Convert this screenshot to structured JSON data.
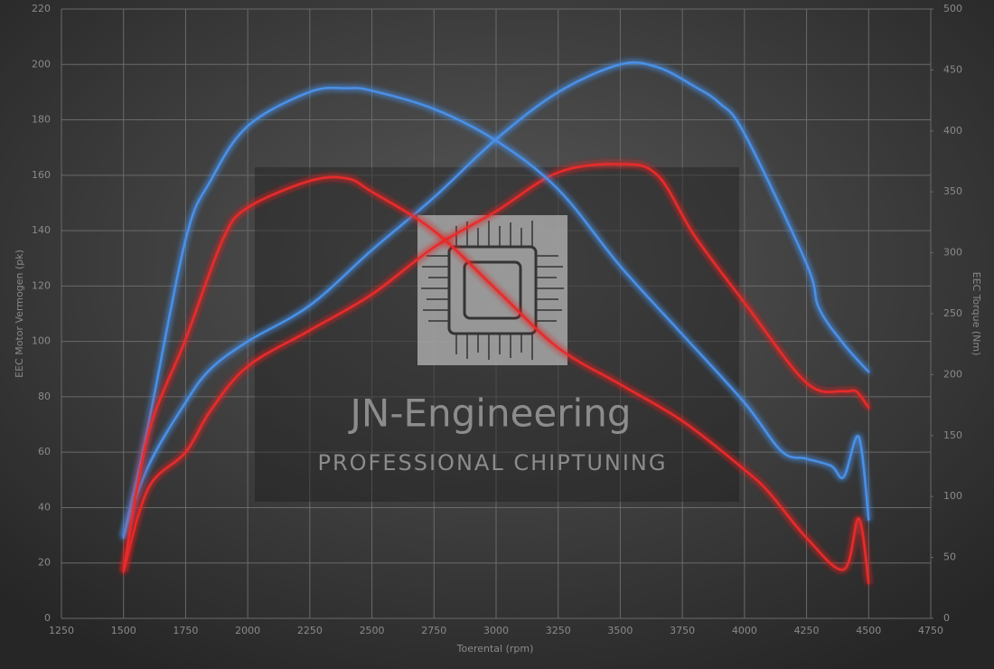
{
  "chart_data": {
    "type": "line",
    "xlabel": "Toerental (rpm)",
    "ylabel": "EEC Motor Vermogen (pk)",
    "y2label": "EEC Torque (Nm)",
    "annotations": [
      "JN-Engineering",
      "PROFESSIONAL CHIPTUNING"
    ],
    "xlim": [
      1250,
      4750
    ],
    "xticks": [
      1250,
      1500,
      1750,
      2000,
      2250,
      2500,
      2750,
      3000,
      3250,
      3500,
      3750,
      4000,
      4250,
      4500,
      4750
    ],
    "ylim": [
      0,
      220
    ],
    "yticks": [
      0,
      20,
      40,
      60,
      80,
      100,
      120,
      140,
      160,
      180,
      200,
      220
    ],
    "y2lim": [
      0,
      500
    ],
    "y2ticks": [
      0,
      50,
      100,
      150,
      200,
      250,
      300,
      350,
      400,
      450,
      500
    ],
    "grid": true,
    "series": [
      {
        "color": "#4a90e8",
        "axis": "y",
        "x": [
          1500,
          1600,
          1750,
          1850,
          2000,
          2250,
          2500,
          2750,
          3000,
          3250,
          3500,
          3650,
          3800,
          3900,
          4000,
          4250,
          4300,
          4400,
          4500
        ],
        "values": [
          30,
          55,
          78,
          90,
          100,
          113,
          133,
          152,
          173,
          190,
          200,
          199,
          192,
          186,
          175,
          128,
          112,
          99,
          89
        ]
      },
      {
        "color": "#e82a2a",
        "axis": "y",
        "x": [
          1500,
          1600,
          1750,
          1850,
          2000,
          2250,
          2500,
          2750,
          3000,
          3250,
          3500,
          3650,
          3800,
          4000,
          4250,
          4400,
          4450,
          4500
        ],
        "values": [
          17,
          47,
          60,
          75,
          91,
          104,
          117,
          134,
          147,
          161,
          164,
          160,
          138,
          114,
          85,
          82,
          82,
          76
        ]
      },
      {
        "color": "#4a90e8",
        "axis": "y2",
        "x": [
          1500,
          1600,
          1750,
          1850,
          2000,
          2250,
          2400,
          2500,
          2750,
          3000,
          3250,
          3500,
          3750,
          4000,
          4150,
          4250,
          4350,
          4400,
          4460,
          4500
        ],
        "values": [
          66,
          159,
          311,
          359,
          404,
          432,
          435,
          433,
          418,
          392,
          352,
          289,
          233,
          177,
          137,
          131,
          125,
          116,
          149,
          81
        ]
      },
      {
        "color": "#e82a2a",
        "axis": "y2",
        "x": [
          1500,
          1600,
          1750,
          1900,
          2000,
          2250,
          2400,
          2500,
          2750,
          3000,
          3250,
          3500,
          3750,
          4000,
          4100,
          4250,
          4400,
          4460,
          4500
        ],
        "values": [
          39,
          151,
          229,
          311,
          337,
          359,
          361,
          350,
          318,
          270,
          222,
          192,
          162,
          122,
          103,
          66,
          40,
          82,
          29
        ]
      }
    ]
  }
}
